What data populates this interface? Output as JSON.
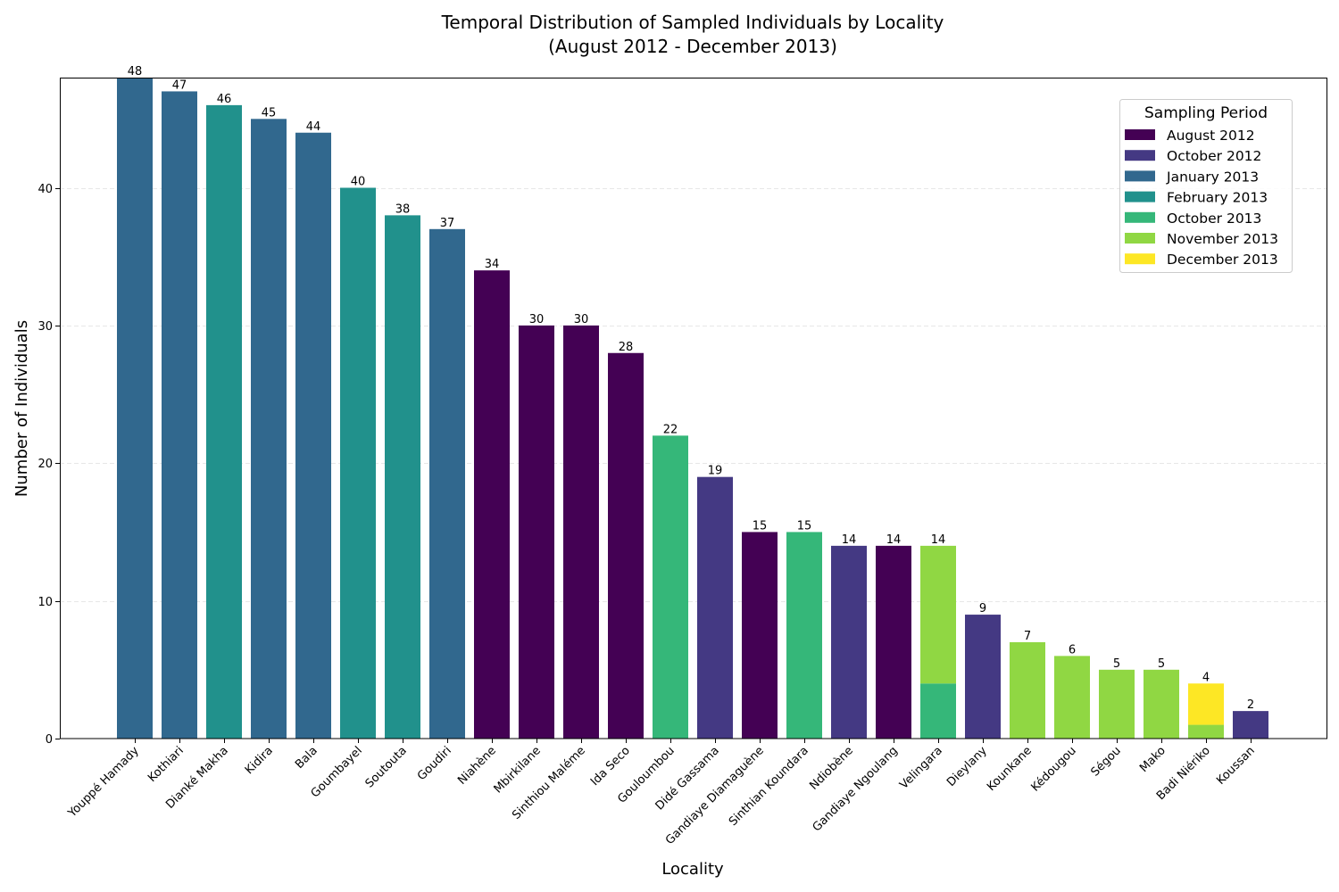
{
  "chart_data": {
    "type": "bar",
    "stacked": true,
    "title": "Temporal Distribution of Sampled Individuals by Locality",
    "subtitle": "(August 2012 - December 2013)",
    "xlabel": "Locality",
    "ylabel": "Number of Individuals",
    "ylim": [
      0,
      48
    ],
    "yticks": [
      0,
      10,
      20,
      30,
      40
    ],
    "grid": "y-dashed",
    "legend": {
      "title": "Sampling Period",
      "placement": "top-right",
      "entries": [
        {
          "label": "August 2012",
          "color": "#440154"
        },
        {
          "label": "October 2012",
          "color": "#443983"
        },
        {
          "label": "January 2013",
          "color": "#31688e"
        },
        {
          "label": "February 2013",
          "color": "#21918c"
        },
        {
          "label": "October 2013",
          "color": "#35b779"
        },
        {
          "label": "November 2013",
          "color": "#90d743"
        },
        {
          "label": "December 2013",
          "color": "#fde725"
        }
      ]
    },
    "categories": [
      "Youppé Hamady",
      "Kothiari",
      "Dianké Makha",
      "Kidira",
      "Bala",
      "Goumbayel",
      "Soutouta",
      "Goudiri",
      "Niahène",
      "Mbirkilane",
      "Sinthiou Maléme",
      "Ida Seco",
      "Gouloumbou",
      "Didé Gassama",
      "Gandiaye Diamaguène",
      "Sinthian Koundara",
      "Ndiobène",
      "Gandiaye Ngoulang",
      "Velingara",
      "Dieylany",
      "Kounkane",
      "Kédougou",
      "Ségou",
      "Mako",
      "Badi Niériko",
      "Koussan"
    ],
    "series": [
      {
        "name": "August 2012",
        "values": [
          0,
          0,
          0,
          0,
          0,
          0,
          0,
          0,
          34,
          30,
          30,
          28,
          0,
          0,
          15,
          0,
          0,
          14,
          0,
          0,
          0,
          0,
          0,
          0,
          0,
          0
        ]
      },
      {
        "name": "October 2012",
        "values": [
          0,
          0,
          0,
          0,
          0,
          0,
          0,
          0,
          0,
          0,
          0,
          0,
          0,
          19,
          0,
          0,
          14,
          0,
          0,
          9,
          0,
          0,
          0,
          0,
          0,
          2
        ]
      },
      {
        "name": "January 2013",
        "values": [
          48,
          47,
          0,
          45,
          44,
          0,
          0,
          37,
          0,
          0,
          0,
          0,
          0,
          0,
          0,
          0,
          0,
          0,
          0,
          0,
          0,
          0,
          0,
          0,
          0,
          0
        ]
      },
      {
        "name": "February 2013",
        "values": [
          0,
          0,
          46,
          0,
          0,
          40,
          38,
          0,
          0,
          0,
          0,
          0,
          0,
          0,
          0,
          0,
          0,
          0,
          0,
          0,
          0,
          0,
          0,
          0,
          0,
          0
        ]
      },
      {
        "name": "October 2013",
        "values": [
          0,
          0,
          0,
          0,
          0,
          0,
          0,
          0,
          0,
          0,
          0,
          0,
          22,
          0,
          0,
          15,
          0,
          0,
          4,
          0,
          0,
          0,
          0,
          0,
          0,
          0
        ]
      },
      {
        "name": "November 2013",
        "values": [
          0,
          0,
          0,
          0,
          0,
          0,
          0,
          0,
          0,
          0,
          0,
          0,
          0,
          0,
          0,
          0,
          0,
          0,
          10,
          0,
          7,
          6,
          5,
          5,
          1,
          0
        ]
      },
      {
        "name": "December 2013",
        "values": [
          0,
          0,
          0,
          0,
          0,
          0,
          0,
          0,
          0,
          0,
          0,
          0,
          0,
          0,
          0,
          0,
          0,
          0,
          0,
          0,
          0,
          0,
          0,
          0,
          3,
          0
        ]
      }
    ],
    "totals": [
      "48",
      "47",
      "46",
      "45",
      "44",
      "40",
      "38",
      "37",
      "34",
      "30",
      "30",
      "28",
      "22",
      "19",
      "15",
      "15",
      "14",
      "14",
      "14",
      "9",
      "7",
      "6",
      "5",
      "5",
      "4",
      "2"
    ]
  }
}
